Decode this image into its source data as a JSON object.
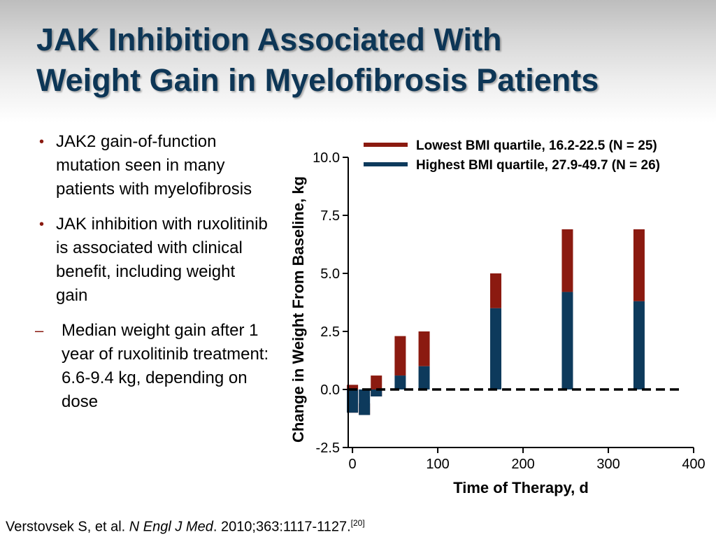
{
  "slide": {
    "title_line1": "JAK Inhibition Associated With",
    "title_line2": "Weight Gain in Myelofibrosis Patients"
  },
  "bullets": [
    {
      "marker": "•",
      "text": "JAK2 gain-of-function mutation seen in many patients with myelofibrosis"
    },
    {
      "marker": "•",
      "text": "JAK inhibition with ruxolitinib is associated with clinical benefit, including weight gain"
    }
  ],
  "sub_bullet": {
    "marker": "–",
    "text": "Median weight gain after 1 year of ruxolitinib treatment: 6.6-9.4 kg, depending on dose"
  },
  "citation": {
    "authors": "Verstovsek S, et al.",
    "journal": "N Engl J Med",
    "details": ". 2010;363:1117-1127.",
    "ref": "[20]"
  },
  "colors": {
    "title": "#0d3656",
    "lowest_series": "#8b1a10",
    "highest_series": "#0d3a5c",
    "bullet_marker": "#8a1a10"
  },
  "chart_data": {
    "type": "bar",
    "xlabel": "Time of Therapy, d",
    "ylabel": "Change in Weight From Baseline, kg",
    "xlim": [
      -5,
      400
    ],
    "ylim": [
      -2.5,
      10.0
    ],
    "x_ticks": [
      0,
      100,
      200,
      300,
      400
    ],
    "y_ticks": [
      -2.5,
      0.0,
      2.5,
      5.0,
      7.5,
      10.0
    ],
    "y_tick_labels": [
      "-2.5",
      "0.0",
      "2.5",
      "5.0",
      "7.5",
      "10.0"
    ],
    "reference_line": {
      "y": 0.0,
      "style": "dashed"
    },
    "legend_position": "top",
    "x": [
      0,
      14,
      28,
      56,
      84,
      168,
      252,
      336
    ],
    "series": [
      {
        "name": "Lowest BMI quartile, 16.2-22.5 (N = 25)",
        "color": "#8b1a10",
        "values": [
          0.2,
          -0.6,
          0.6,
          2.3,
          2.5,
          5.0,
          6.9,
          6.9
        ]
      },
      {
        "name": "Highest BMI quartile, 27.9-49.7 (N = 26)",
        "color": "#0d3a5c",
        "values": [
          -1.0,
          -1.1,
          -0.3,
          0.6,
          1.0,
          3.5,
          4.2,
          3.8
        ]
      }
    ]
  }
}
